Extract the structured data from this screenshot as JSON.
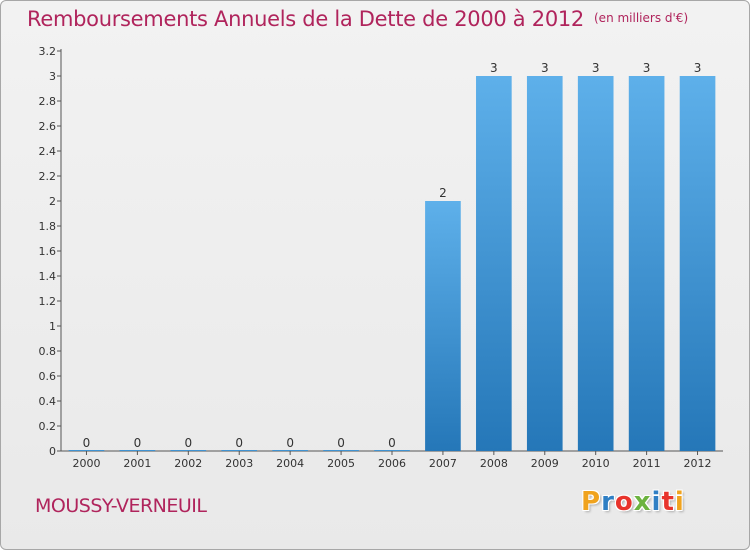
{
  "title": "Remboursements Annuels de la Dette de 2000 à 2012",
  "unit": "(en milliers d'€)",
  "commune": "MOUSSY-VERNEUIL",
  "logo": {
    "letters": [
      "P",
      "r",
      "o",
      "x",
      "i",
      "t",
      "i"
    ],
    "colors": [
      "#f0a31e",
      "#2f7fc4",
      "#e8342c",
      "#6cb33f",
      "#2f7fc4",
      "#e8342c",
      "#f0a31e"
    ]
  },
  "colors": {
    "bar_light": "#5eb0ea",
    "bar_dark": "#2577b8",
    "title": "#b0245c"
  },
  "chart_data": {
    "type": "bar",
    "title": "Remboursements Annuels de la Dette de 2000 à 2012",
    "xlabel": "",
    "ylabel": "",
    "categories": [
      "2000",
      "2001",
      "2002",
      "2003",
      "2004",
      "2005",
      "2006",
      "2007",
      "2008",
      "2009",
      "2010",
      "2011",
      "2012"
    ],
    "values": [
      0,
      0,
      0,
      0,
      0,
      0,
      0,
      2,
      3,
      3,
      3,
      3,
      3
    ],
    "value_labels": [
      "0",
      "0",
      "0",
      "0",
      "0",
      "0",
      "0",
      "2",
      "3",
      "3",
      "3",
      "3",
      "3"
    ],
    "ylim": [
      0,
      3.2
    ],
    "y_ticks": [
      "0",
      "0.2",
      "0.4",
      "0.6",
      "0.8",
      "1",
      "1.2",
      "1.4",
      "1.6",
      "1.8",
      "2",
      "2.2",
      "2.4",
      "2.6",
      "2.8",
      "3",
      "3.2"
    ],
    "y_tick_values": [
      0,
      0.2,
      0.4,
      0.6,
      0.8,
      1,
      1.2,
      1.4,
      1.6,
      1.8,
      2,
      2.2,
      2.4,
      2.6,
      2.8,
      3,
      3.2
    ],
    "grid": false,
    "legend": "none"
  }
}
